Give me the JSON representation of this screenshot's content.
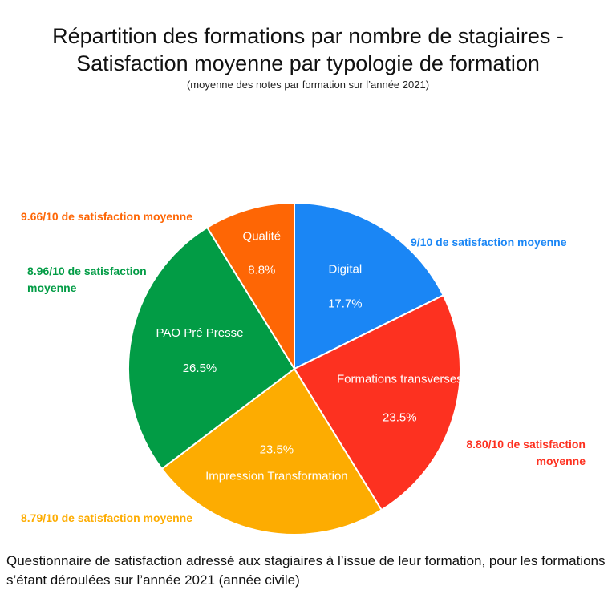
{
  "chart_data": {
    "type": "pie",
    "title_line1": "Répartition des formations par nombre de stagiaires -",
    "title_line2": "Satisfaction moyenne par typologie de formation",
    "subtitle": "(moyenne des notes par formation sur l’année 2021)",
    "slices": [
      {
        "label": "Digital",
        "value": 17.7,
        "value_label": "17.7%",
        "color": "#1a86f5",
        "satisfaction": "9/10 de satisfaction moyenne"
      },
      {
        "label": "Formations transverses",
        "value": 23.5,
        "value_label": "23.5%",
        "color": "#fd3120",
        "satisfaction": "8.80/10 de satisfaction moyenne"
      },
      {
        "label": "Impression Transformation",
        "value": 23.5,
        "value_label": "23.5%",
        "color": "#fdac01",
        "satisfaction": "8.79/10 de satisfaction moyenne"
      },
      {
        "label": "PAO Pré Presse",
        "value": 26.5,
        "value_label": "26.5%",
        "color": "#029c45",
        "satisfaction": "8.96/10 de satisfaction moyenne"
      },
      {
        "label": "Qualité",
        "value": 8.8,
        "value_label": "8.8%",
        "color": "#fe6605",
        "satisfaction": "9.66/10 de satisfaction moyenne"
      }
    ],
    "start_angle_deg": 0,
    "direction": "clockwise",
    "legend": "none"
  },
  "footer": "Questionnaire de satisfaction adressé aux stagiaires à l’issue de leur formation, pour les formations s’étant déroulées sur l’année 2021 (année civile)"
}
